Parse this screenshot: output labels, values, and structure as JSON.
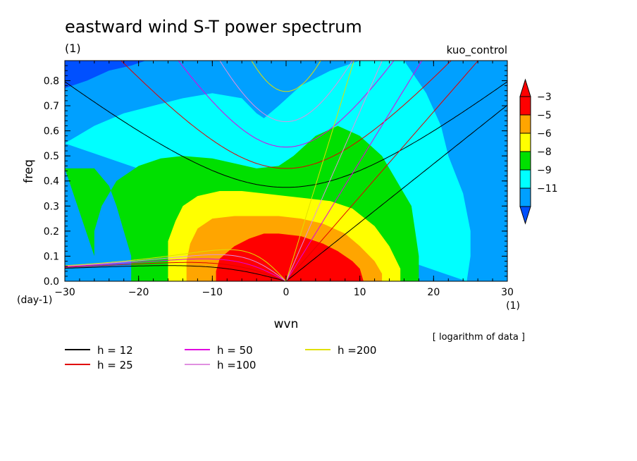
{
  "chart_data": {
    "type": "heatmap",
    "title": "eastward wind S-T power spectrum",
    "subtitle": "kuo_control",
    "xlabel": "wvn",
    "ylabel": "freq",
    "x_unit": "(1)",
    "y_unit_top": "(1)",
    "y_unit_bottom": "(day-1)",
    "xlim": [
      -30,
      30
    ],
    "ylim": [
      0,
      0.88
    ],
    "x_ticks": [
      -30,
      -20,
      -10,
      0,
      10,
      20,
      30
    ],
    "x_tick_labels": [
      "−30",
      "−20",
      "−10",
      "0",
      "10",
      "20",
      "30"
    ],
    "y_ticks": [
      0,
      0.1,
      0.2,
      0.3,
      0.4,
      0.5,
      0.6,
      0.7,
      0.8
    ],
    "y_tick_labels": [
      "0.0",
      "0.1",
      "0.2",
      "0.3",
      "0.4",
      "0.5",
      "0.6",
      "0.7",
      "0.8"
    ],
    "note": "[ logarithm of data ]",
    "colorbar": {
      "labels": [
        "−3",
        "−5",
        "−6",
        "−8",
        "−9",
        "−11"
      ],
      "colors": [
        "#ff0000",
        "#ffa500",
        "#ffff00",
        "#00e000",
        "#00ffff",
        "#00a0ff"
      ],
      "over_color": "#ff0000",
      "under_color": "#0050ff"
    },
    "filled_levels": [
      {
        "name": "level-below-minus11",
        "color": "#0050ff",
        "points": [
          [
            -30,
            0.88
          ],
          [
            -30,
            0.77
          ],
          [
            -27,
            0.8
          ],
          [
            -24,
            0.84
          ],
          [
            -21,
            0.86
          ],
          [
            -19,
            0.88
          ]
        ]
      },
      {
        "name": "level-minus11",
        "color": "#00a0ff",
        "points": [
          [
            -30,
            0.77
          ],
          [
            -27,
            0.8
          ],
          [
            -24,
            0.84
          ],
          [
            -21,
            0.86
          ],
          [
            -19,
            0.88
          ],
          [
            30,
            0.88
          ],
          [
            30,
            0
          ]
        ]
      },
      {
        "name": "level-minus9",
        "color": "#00ffff",
        "points": [
          [
            -30,
            0.55
          ],
          [
            -26,
            0.62
          ],
          [
            -22,
            0.67
          ],
          [
            -18,
            0.7
          ],
          [
            -14,
            0.73
          ],
          [
            -10,
            0.75
          ],
          [
            -6,
            0.73
          ],
          [
            -4,
            0.67
          ],
          [
            -3,
            0.65
          ],
          [
            -1,
            0.7
          ],
          [
            2,
            0.78
          ],
          [
            6,
            0.84
          ],
          [
            10,
            0.88
          ],
          [
            16,
            0.88
          ],
          [
            19,
            0.75
          ],
          [
            21,
            0.62
          ],
          [
            22,
            0.5
          ],
          [
            24,
            0.35
          ],
          [
            25,
            0.2
          ],
          [
            25,
            0.1
          ],
          [
            24.5,
            0
          ]
        ]
      },
      {
        "name": "level-minus8",
        "color": "#00e000",
        "points": [
          [
            -30,
            0.45
          ],
          [
            -26,
            0.45
          ],
          [
            -24,
            0.38
          ],
          [
            -23,
            0.3
          ],
          [
            -22,
            0.2
          ],
          [
            -21,
            0.1
          ],
          [
            -21,
            0
          ],
          [
            18,
            0
          ],
          [
            18,
            0.1
          ],
          [
            17.5,
            0.2
          ],
          [
            17,
            0.3
          ],
          [
            15,
            0.4
          ],
          [
            13,
            0.5
          ],
          [
            10,
            0.58
          ],
          [
            7,
            0.62
          ],
          [
            4,
            0.58
          ],
          [
            1,
            0.5
          ],
          [
            -1,
            0.46
          ],
          [
            -4,
            0.45
          ],
          [
            -7,
            0.47
          ],
          [
            -10,
            0.49
          ],
          [
            -14,
            0.5
          ],
          [
            -17,
            0.49
          ],
          [
            -20,
            0.46
          ],
          [
            -23,
            0.4
          ],
          [
            -25,
            0.3
          ],
          [
            -26,
            0.2
          ],
          [
            -26,
            0.1
          ]
        ]
      },
      {
        "name": "level-minus6",
        "color": "#ffff00",
        "points": [
          [
            -16,
            0
          ],
          [
            -16,
            0.08
          ],
          [
            -16,
            0.16
          ],
          [
            -15,
            0.24
          ],
          [
            -14,
            0.3
          ],
          [
            -12,
            0.34
          ],
          [
            -9,
            0.36
          ],
          [
            -6,
            0.36
          ],
          [
            -3,
            0.35
          ],
          [
            0,
            0.34
          ],
          [
            3,
            0.33
          ],
          [
            6,
            0.32
          ],
          [
            9,
            0.29
          ],
          [
            12,
            0.22
          ],
          [
            14,
            0.14
          ],
          [
            15.5,
            0.05
          ],
          [
            15.5,
            0
          ]
        ]
      },
      {
        "name": "level-minus5",
        "color": "#ffa500",
        "points": [
          [
            -13.5,
            0
          ],
          [
            -13.5,
            0.08
          ],
          [
            -13,
            0.15
          ],
          [
            -12,
            0.21
          ],
          [
            -10,
            0.25
          ],
          [
            -7,
            0.26
          ],
          [
            -4,
            0.26
          ],
          [
            -1,
            0.26
          ],
          [
            2,
            0.25
          ],
          [
            5,
            0.23
          ],
          [
            8,
            0.19
          ],
          [
            10,
            0.14
          ],
          [
            12,
            0.08
          ],
          [
            13,
            0.03
          ],
          [
            13,
            0
          ]
        ]
      },
      {
        "name": "level-minus3",
        "color": "#ff0000",
        "points": [
          [
            -9.5,
            0
          ],
          [
            -9.5,
            0.04
          ],
          [
            -9,
            0.09
          ],
          [
            -7,
            0.14
          ],
          [
            -5,
            0.17
          ],
          [
            -3,
            0.19
          ],
          [
            -1,
            0.19
          ],
          [
            2,
            0.18
          ],
          [
            5,
            0.15
          ],
          [
            7,
            0.12
          ],
          [
            9,
            0.08
          ],
          [
            10,
            0.05
          ],
          [
            10.5,
            0
          ]
        ]
      }
    ],
    "series": [
      {
        "name": "h = 12",
        "color": "#000000",
        "h": 12
      },
      {
        "name": "h = 25",
        "color": "#e00000",
        "h": 25
      },
      {
        "name": "h = 50",
        "color": "#e000e0",
        "h": 50
      },
      {
        "name": "h =100",
        "color": "#e090e0",
        "h": 100
      },
      {
        "name": "h =200",
        "color": "#e0e000",
        "h": 200
      }
    ]
  }
}
